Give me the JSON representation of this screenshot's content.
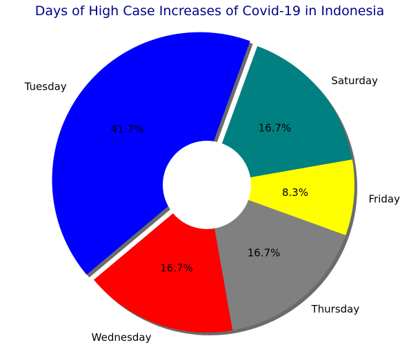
{
  "chart_data": {
    "type": "pie",
    "title": "Days of High Case Increases of Covid-19 in Indonesia",
    "categories": [
      "Tuesday",
      "Wednesday",
      "Thursday",
      "Friday",
      "Saturday"
    ],
    "values": [
      41.7,
      16.7,
      16.7,
      8.3,
      16.7
    ],
    "percent_labels": [
      "41.7%",
      "16.7%",
      "16.7%",
      "8.3%",
      "16.7%"
    ],
    "colors": [
      "#0000ff",
      "#ff0000",
      "#808080",
      "#ffff00",
      "#008080"
    ],
    "exploded": [
      "Tuesday"
    ],
    "donut": true,
    "shadow": true,
    "title_color": "#00008b"
  }
}
